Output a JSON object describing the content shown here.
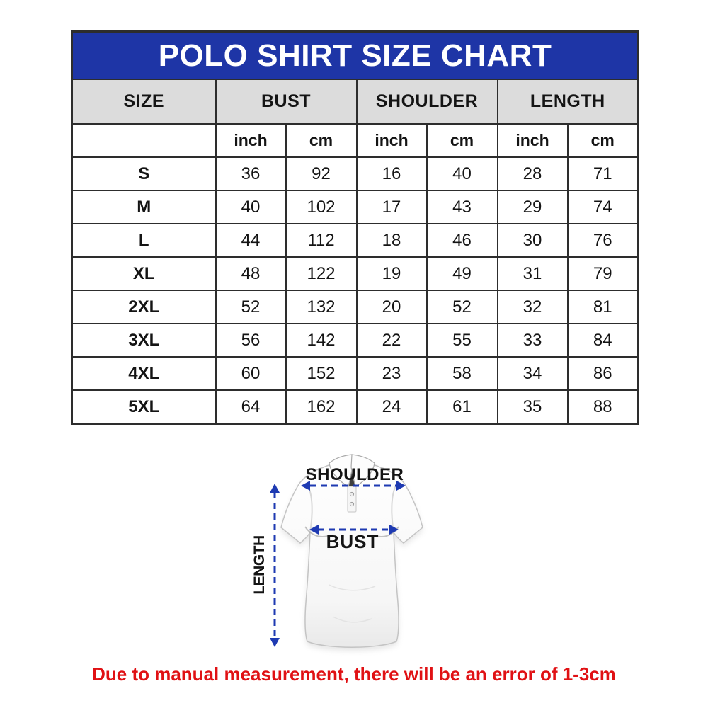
{
  "title_bar": {
    "text": "POLO SHIRT SIZE CHART"
  },
  "colors": {
    "title_bg": "#1e35a6",
    "title_text": "#ffffff",
    "header_bg": "#dcdcdc",
    "border": "#2d2d2d",
    "arrow_blue": "#1e3ab2",
    "note_red": "#e01114"
  },
  "size_table": {
    "group_headers": [
      "SIZE",
      "BUST",
      "SHOULDER",
      "LENGTH"
    ],
    "unit_headers": [
      "inch",
      "cm",
      "inch",
      "cm",
      "inch",
      "cm"
    ],
    "rows": [
      {
        "size": "S",
        "values": [
          "36",
          "92",
          "16",
          "40",
          "28",
          "71"
        ]
      },
      {
        "size": "M",
        "values": [
          "40",
          "102",
          "17",
          "43",
          "29",
          "74"
        ]
      },
      {
        "size": "L",
        "values": [
          "44",
          "112",
          "18",
          "46",
          "30",
          "76"
        ]
      },
      {
        "size": "XL",
        "values": [
          "48",
          "122",
          "19",
          "49",
          "31",
          "79"
        ]
      },
      {
        "size": "2XL",
        "values": [
          "52",
          "132",
          "20",
          "52",
          "32",
          "81"
        ]
      },
      {
        "size": "3XL",
        "values": [
          "56",
          "142",
          "22",
          "55",
          "33",
          "84"
        ]
      },
      {
        "size": "4XL",
        "values": [
          "60",
          "152",
          "23",
          "58",
          "34",
          "86"
        ]
      },
      {
        "size": "5XL",
        "values": [
          "64",
          "162",
          "24",
          "61",
          "35",
          "88"
        ]
      }
    ]
  },
  "diagram": {
    "shoulder_label": "SHOULDER",
    "bust_label": "BUST",
    "length_label": "LENGTH"
  },
  "footnote": {
    "text": "Due to manual measurement, there will be an error of 1-3cm"
  },
  "chart_data": {
    "type": "table",
    "title": "POLO SHIRT SIZE CHART",
    "column_groups": [
      "SIZE",
      "BUST",
      "SHOULDER",
      "LENGTH"
    ],
    "columns": [
      "SIZE",
      "BUST (inch)",
      "BUST (cm)",
      "SHOULDER (inch)",
      "SHOULDER (cm)",
      "LENGTH (inch)",
      "LENGTH (cm)"
    ],
    "rows": [
      [
        "S",
        36,
        92,
        16,
        40,
        28,
        71
      ],
      [
        "M",
        40,
        102,
        17,
        43,
        29,
        74
      ],
      [
        "L",
        44,
        112,
        18,
        46,
        30,
        76
      ],
      [
        "XL",
        48,
        122,
        19,
        49,
        31,
        79
      ],
      [
        "2XL",
        52,
        132,
        20,
        52,
        32,
        81
      ],
      [
        "3XL",
        56,
        142,
        22,
        55,
        33,
        84
      ],
      [
        "4XL",
        60,
        152,
        23,
        58,
        34,
        86
      ],
      [
        "5XL",
        64,
        162,
        24,
        61,
        35,
        88
      ]
    ],
    "footnote": "Due to manual measurement, there will be an error of 1-3cm"
  }
}
